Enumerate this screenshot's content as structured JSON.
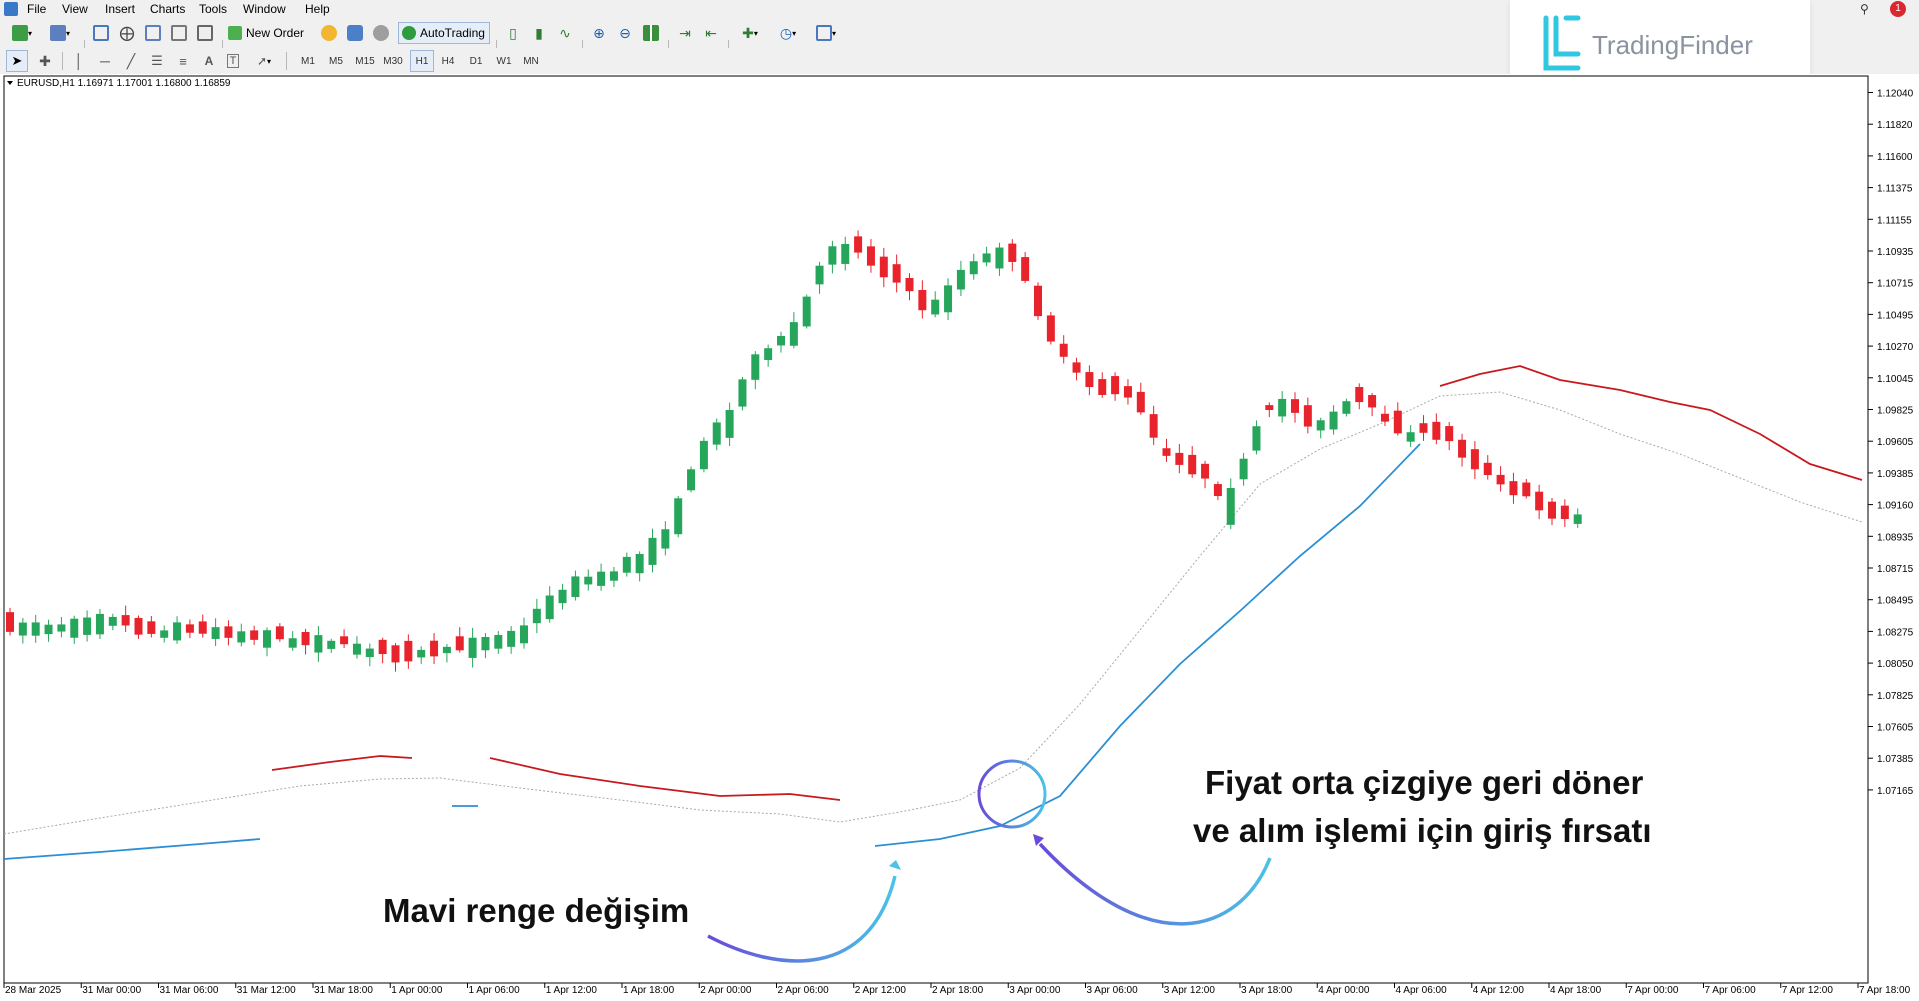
{
  "menu": [
    "File",
    "View",
    "Insert",
    "Charts",
    "Tools",
    "Window",
    "Help"
  ],
  "toolbar": {
    "new_order": "New Order",
    "autotrading": "AutoTrading"
  },
  "timeframes": [
    "M1",
    "M5",
    "M15",
    "M30",
    "H1",
    "H4",
    "D1",
    "W1",
    "MN"
  ],
  "brand": {
    "name": "TradingFinder"
  },
  "chart": {
    "symbol_info": "EURUSD,H1  1.16971 1.17001 1.16800 1.16859",
    "colors": {
      "bull": "#26a65b",
      "bear": "#e8232b",
      "upper": "#c8191e",
      "lower": "#2b8fd6",
      "mid": "#a9a9a9",
      "arrow_start": "#6a4bd8",
      "arrow_end": "#49c3e6",
      "circle": "#5c3fd6"
    }
  },
  "chart_data": {
    "type": "candlestick",
    "y_ticks": [
      "1.12040",
      "1.11820",
      "1.11600",
      "1.11375",
      "1.11155",
      "1.10935",
      "1.10715",
      "1.10495",
      "1.10270",
      "1.10045",
      "1.09825",
      "1.09605",
      "1.09385",
      "1.09160",
      "1.08935",
      "1.08715",
      "1.08495",
      "1.08275",
      "1.08050",
      "1.07825",
      "1.07605",
      "1.07385",
      "1.07165"
    ],
    "ylim": [
      1.0698,
      1.1227
    ],
    "x_ticks": [
      "28 Mar 2025",
      "31 Mar 00:00",
      "31 Mar 06:00",
      "31 Mar 12:00",
      "31 Mar 18:00",
      "1 Apr 00:00",
      "1 Apr 06:00",
      "1 Apr 12:00",
      "1 Apr 18:00",
      "2 Apr 00:00",
      "2 Apr 06:00",
      "2 Apr 12:00",
      "2 Apr 18:00",
      "3 Apr 00:00",
      "3 Apr 06:00",
      "3 Apr 12:00",
      "3 Apr 18:00",
      "4 Apr 00:00",
      "4 Apr 06:00",
      "4 Apr 12:00",
      "4 Apr 18:00",
      "7 Apr 00:00",
      "7 Apr 06:00",
      "7 Apr 12:00",
      "7 Apr 18:00"
    ]
  },
  "annotations": {
    "left_text": "Mavi renge değişim",
    "right_text_1": "Fiyat orta çizgiye geri döner",
    "right_text_2": "ve alım işlemi için giriş fırsatı"
  }
}
